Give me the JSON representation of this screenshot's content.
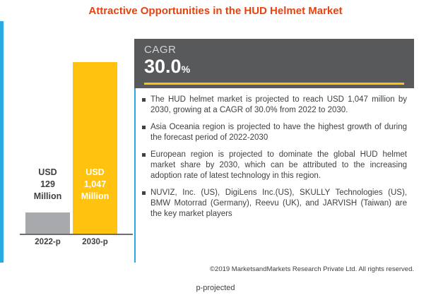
{
  "title": "Attractive Opportunities in the HUD Helmet Market",
  "chart_data": {
    "type": "bar",
    "categories": [
      "2022-p",
      "2030-p"
    ],
    "values": [
      129,
      1047
    ],
    "value_labels": [
      "USD\n129\nMillion",
      "USD\n1,047\nMillion"
    ],
    "colors": [
      "#A7A9AC",
      "#FFC20E"
    ],
    "ylim": [
      0,
      1047
    ],
    "title": "Attractive Opportunities in the HUD Helmet Market",
    "xlabel": "",
    "ylabel": "",
    "legend": "none",
    "grid": false
  },
  "cagr": {
    "label": "CAGR",
    "value": "30.0",
    "unit": "%"
  },
  "bullets": [
    "The HUD helmet market is projected to reach USD 1,047 million by 2030, growing at a CAGR of 30.0% from 2022 to 2030.",
    "Asia Oceania region is projected to have the highest growth of during the forecast period of 2022-2030",
    "European region is projected to dominate the global HUD helmet market share by 2030, which can be attributed to the increasing adoption rate of latest technology in this region.",
    "NUVIZ, Inc. (US), DigiLens Inc.(US), SKULLY Technologies (US), BMW Motorrad (Germany), Reevu (UK), and JARVISH (Taiwan) are the key market players"
  ],
  "footer": {
    "copyright": "©2019 MarketsandMarkets Research Private Ltd. All rights reserved.",
    "note": "p-projected"
  },
  "colors": {
    "accent_blue": "#29ABE2",
    "title_red": "#E8420E",
    "bar_gray": "#A7A9AC",
    "bar_yellow": "#FFC20E",
    "panel_dark": "#58595B"
  }
}
